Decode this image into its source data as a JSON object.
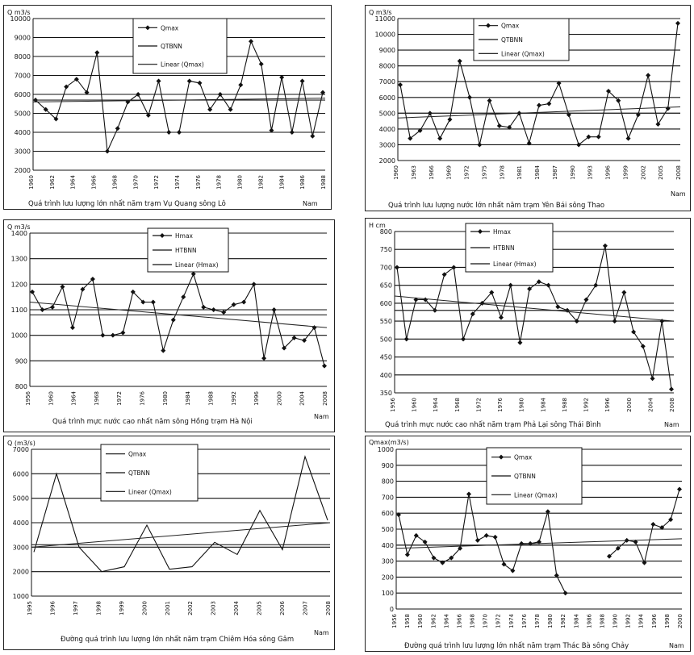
{
  "chart_data": [
    {
      "type": "line",
      "ylabel": "Q m3/s",
      "xlabel": "Nam",
      "caption": "Quá trình lưu lượng lớn nhất năm trạm Vụ Quang sông Lô",
      "ylim": [
        2000,
        10000
      ],
      "yticks": [
        "2000",
        "3000",
        "4000",
        "5000",
        "6000",
        "7000",
        "8000",
        "9000",
        "10000"
      ],
      "x_labels": [
        "1960",
        "1962",
        "1964",
        "1966",
        "1968",
        "1970",
        "1972",
        "1974",
        "1976",
        "1978",
        "1980",
        "1982",
        "1984",
        "1986",
        "1988"
      ],
      "series": [
        {
          "name": "Qmax",
          "kind": "marker",
          "values": [
            5700,
            5200,
            4700,
            6400,
            6800,
            6100,
            8200,
            3000,
            4200,
            5600,
            6000,
            4900,
            6700,
            4000,
            4000,
            6700,
            6600,
            5200,
            6000,
            5200,
            6500,
            8800,
            7600,
            4100,
            6900,
            4000,
            6700,
            3800,
            6100
          ]
        },
        {
          "name": "QTBNN",
          "kind": "flat",
          "values": [
            5700
          ]
        },
        {
          "name": "Linear (Qmax)",
          "kind": "trend",
          "values": [
            5600,
            5800
          ]
        }
      ]
    },
    {
      "type": "line",
      "ylabel": "Q m3/s",
      "xlabel": "Nam",
      "caption": "Quá trình lưu lượng nước lớn nhất năm trạm Yên Bái sông Thao",
      "ylim": [
        2000,
        11000
      ],
      "yticks": [
        "2000",
        "3000",
        "4000",
        "5000",
        "6000",
        "7000",
        "8000",
        "9000",
        "10000",
        "11000"
      ],
      "x_labels": [
        "1960",
        "1963",
        "1966",
        "1969",
        "1972",
        "1975",
        "1978",
        "1981",
        "1984",
        "1987",
        "1990",
        "1993",
        "1996",
        "1999",
        "2002",
        "2005",
        "2008"
      ],
      "series": [
        {
          "name": "Qmax",
          "kind": "marker",
          "values": [
            6800,
            3400,
            3900,
            5000,
            3400,
            4600,
            8300,
            6000,
            3000,
            5800,
            4200,
            4100,
            5000,
            3100,
            5500,
            5600,
            6900,
            4900,
            3000,
            3500,
            3500,
            6400,
            5800,
            3400,
            4900,
            7400,
            4300,
            5300,
            10700
          ]
        },
        {
          "name": "QTBNN",
          "kind": "flat",
          "values": [
            5000
          ]
        },
        {
          "name": "Linear (Qmax)",
          "kind": "trend",
          "values": [
            4700,
            5400
          ]
        }
      ]
    },
    {
      "type": "line",
      "ylabel": "Q m3/s",
      "xlabel": "Nam",
      "caption": "Quá trình mực nước cao nhất năm sông Hồng trạm Hà Nội",
      "ylim": [
        800,
        1400
      ],
      "yticks": [
        "800",
        "900",
        "1000",
        "1100",
        "1200",
        "1300",
        "1400"
      ],
      "x_labels": [
        "1956",
        "1960",
        "1964",
        "1968",
        "1972",
        "1976",
        "1980",
        "1984",
        "1988",
        "1992",
        "1996",
        "2000",
        "2004",
        "2008"
      ],
      "series": [
        {
          "name": "Hmax",
          "kind": "marker",
          "values": [
            1170,
            1100,
            1110,
            1190,
            1030,
            1180,
            1220,
            1000,
            1000,
            1010,
            1170,
            1130,
            1130,
            940,
            1060,
            1150,
            1240,
            1110,
            1100,
            1090,
            1120,
            1130,
            1200,
            910,
            1100,
            950,
            990,
            980,
            1030,
            880
          ]
        },
        {
          "name": "HTBNN",
          "kind": "flat",
          "values": [
            1080
          ]
        },
        {
          "name": "Linear (Hmax)",
          "kind": "trend",
          "values": [
            1130,
            1030
          ]
        }
      ]
    },
    {
      "type": "line",
      "ylabel": "H cm",
      "xlabel": "Nam",
      "caption": "Quá trình mực nước cao nhất năm trạm Phả Lại sông Thái Bình",
      "ylim": [
        350,
        800
      ],
      "yticks": [
        "350",
        "400",
        "450",
        "500",
        "550",
        "600",
        "650",
        "700",
        "750",
        "800"
      ],
      "x_labels": [
        "1956",
        "1960",
        "1964",
        "1968",
        "1972",
        "1976",
        "1980",
        "1984",
        "1988",
        "1992",
        "1996",
        "2000",
        "2004",
        "2008"
      ],
      "series": [
        {
          "name": "Hmax",
          "kind": "marker",
          "values": [
            700,
            500,
            610,
            610,
            580,
            680,
            700,
            500,
            570,
            600,
            630,
            560,
            650,
            490,
            640,
            660,
            650,
            590,
            580,
            550,
            610,
            650,
            760,
            550,
            630,
            520,
            480,
            390,
            550,
            360
          ]
        },
        {
          "name": "HTBNN",
          "kind": "flat",
          "values": [
            580
          ]
        },
        {
          "name": "Linear (Hmax)",
          "kind": "trend",
          "values": [
            620,
            550
          ]
        }
      ]
    },
    {
      "type": "line",
      "ylabel": "Q (m3/s)",
      "xlabel": "Nam",
      "caption": "Đường quá trình lưu lượng lớn nhất năm trạm Chiêm Hóa sông Gâm",
      "ylim": [
        1000,
        7000
      ],
      "yticks": [
        "1000",
        "2000",
        "3000",
        "4000",
        "5000",
        "6000",
        "7000"
      ],
      "x_labels": [
        "1995",
        "1996",
        "1997",
        "1998",
        "1999",
        "2000",
        "2001",
        "2002",
        "2003",
        "2004",
        "2005",
        "2006",
        "2007",
        "2008"
      ],
      "series": [
        {
          "name": "Qmax",
          "kind": "plain",
          "values": [
            2800,
            6000,
            3000,
            2000,
            2200,
            3900,
            2100,
            2200,
            3200,
            2700,
            4500,
            2900,
            6700,
            4100
          ]
        },
        {
          "name": "QTBNN",
          "kind": "flat",
          "values": [
            3100
          ]
        },
        {
          "name": "Linear (Qmax)",
          "kind": "trend",
          "values": [
            3000,
            4000
          ]
        }
      ]
    },
    {
      "type": "line",
      "ylabel": "Qmax(m3/s)",
      "xlabel": "Nam",
      "caption": "Đường quá trình lưu lượng lớn nhất năm trạm Thác Bà sông Chảy",
      "ylim": [
        0,
        1000
      ],
      "yticks": [
        "0",
        "100",
        "200",
        "300",
        "400",
        "500",
        "600",
        "700",
        "800",
        "900",
        "1000"
      ],
      "x_labels": [
        "1956",
        "1958",
        "1960",
        "1962",
        "1964",
        "1966",
        "1968",
        "1970",
        "1972",
        "1974",
        "1976",
        "1978",
        "1980",
        "1982",
        "1984",
        "1986",
        "1988",
        "1990",
        "1992",
        "1994",
        "1996",
        "1998",
        "2000"
      ],
      "series": [
        {
          "name": "Qmax",
          "kind": "marker",
          "values": [
            590,
            340,
            460,
            420,
            320,
            290,
            320,
            380,
            720,
            430,
            460,
            450,
            280,
            240,
            410,
            410,
            420,
            610,
            210,
            100,
            null,
            null,
            null,
            null,
            330,
            380,
            430,
            420,
            290,
            530,
            510,
            560,
            750
          ]
        },
        {
          "name": "QTBNN",
          "kind": "flat",
          "values": [
            400
          ]
        },
        {
          "name": "Linear (Qmax)",
          "kind": "trend",
          "values": [
            380,
            440
          ]
        }
      ]
    }
  ]
}
